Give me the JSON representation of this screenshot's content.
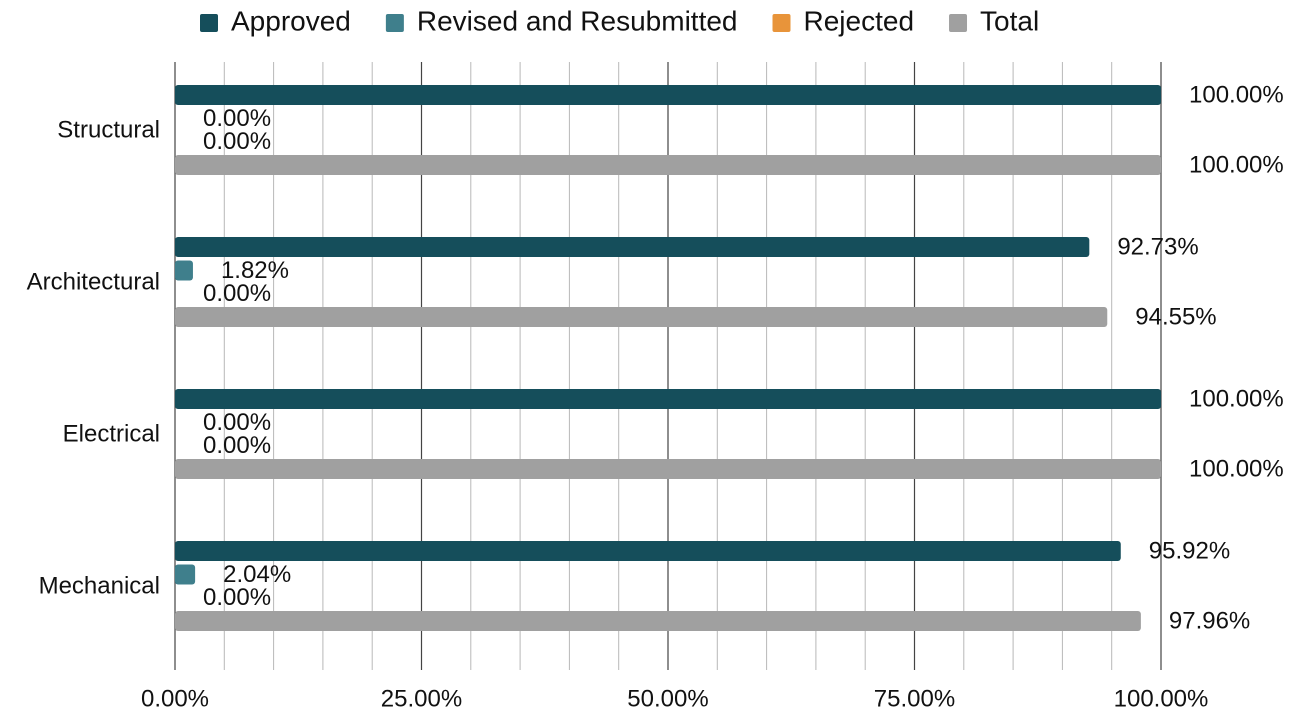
{
  "chart_data": {
    "type": "hbar",
    "categories": [
      "Structural",
      "Architectural",
      "Electrical",
      "Mechanical"
    ],
    "series": [
      {
        "name": "Approved",
        "color": "#154e5b",
        "values": [
          100,
          92.73,
          100,
          95.92
        ],
        "value_labels": [
          "100.00%",
          "92.73%",
          "100.00%",
          "95.92%"
        ]
      },
      {
        "name": "Revised and Resubmitted",
        "color": "#3f7f8c",
        "values": [
          0,
          1.82,
          0,
          2.04
        ],
        "value_labels": [
          "0.00%",
          "1.82%",
          "0.00%",
          "2.04%"
        ]
      },
      {
        "name": "Rejected",
        "color": "#e8943a",
        "values": [
          0,
          0,
          0,
          0
        ],
        "value_labels": [
          "0.00%",
          "0.00%",
          "0.00%",
          "0.00%"
        ]
      },
      {
        "name": "Total",
        "color": "#a0a0a0",
        "values": [
          100,
          94.55,
          100,
          97.96
        ],
        "value_labels": [
          "100.00%",
          "94.55%",
          "100.00%",
          "97.96%"
        ]
      }
    ],
    "xlim": [
      0,
      100
    ],
    "xticks": [
      {
        "value": 0,
        "label": "0.00%"
      },
      {
        "value": 25,
        "label": "25.00%"
      },
      {
        "value": 50,
        "label": "50.00%"
      },
      {
        "value": 75,
        "label": "75.00%"
      },
      {
        "value": 100,
        "label": "100.00%"
      }
    ],
    "minor_xticks": [
      5,
      10,
      15,
      20,
      30,
      35,
      40,
      45,
      55,
      60,
      65,
      70,
      80,
      85,
      90,
      95
    ],
    "grid": true,
    "legend": "top"
  }
}
